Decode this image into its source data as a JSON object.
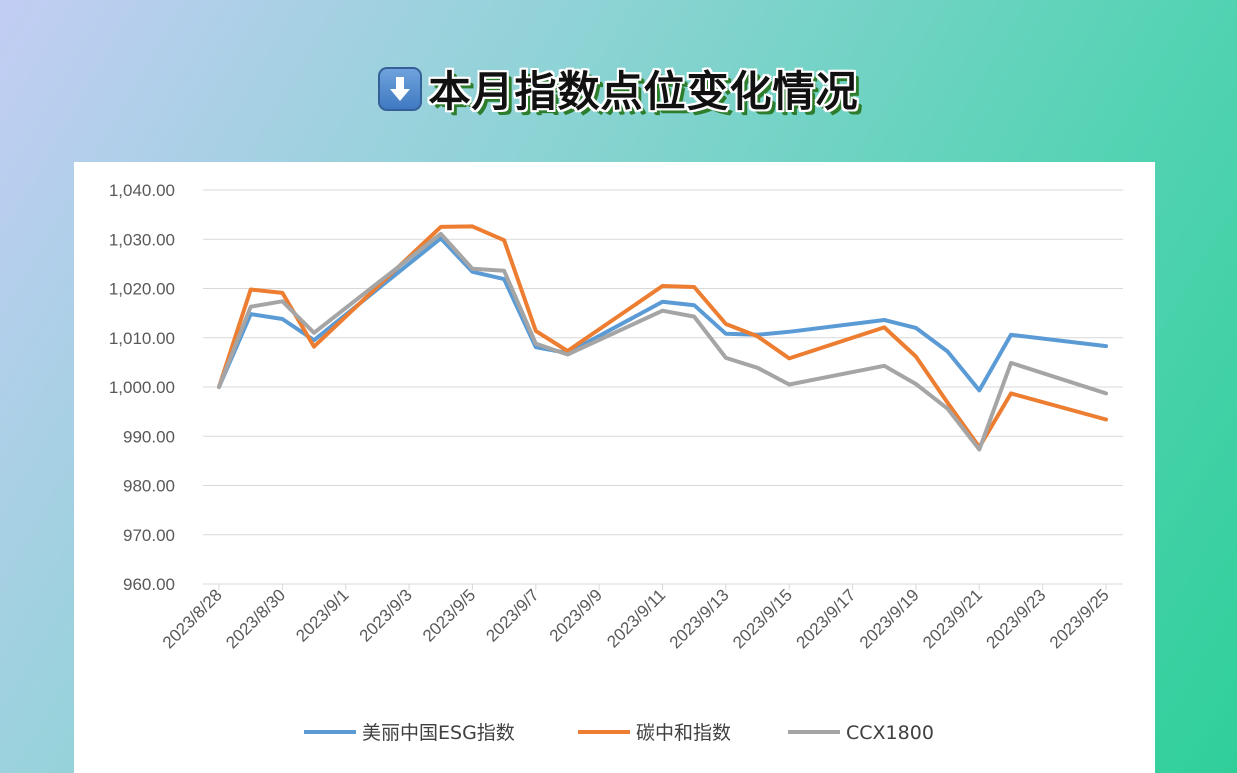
{
  "page": {
    "heading": "本月指数点位变化情况",
    "heading_icon": "down-arrow-icon"
  },
  "colors": {
    "series_blue": "#5b9bd5",
    "series_orange": "#ed7d31",
    "series_gray": "#a5a5a5",
    "grid": "#d9d9d9",
    "axis_text": "#595959"
  },
  "chart_data": {
    "type": "line",
    "xlabel": "",
    "ylabel": "",
    "ylim": [
      960,
      1040
    ],
    "grid": true,
    "legend_position": "bottom",
    "yticks": [
      "960.00",
      "970.00",
      "980.00",
      "990.00",
      "1,000.00",
      "1,010.00",
      "1,020.00",
      "1,030.00",
      "1,040.00"
    ],
    "xtick_labels": [
      "2023/8/28",
      "2023/8/30",
      "2023/9/1",
      "2023/9/3",
      "2023/9/5",
      "2023/9/7",
      "2023/9/9",
      "2023/9/11",
      "2023/9/13",
      "2023/9/15",
      "2023/9/17",
      "2023/9/19",
      "2023/9/21",
      "2023/9/23",
      "2023/9/25"
    ],
    "x": [
      "2023/8/28",
      "2023/8/29",
      "2023/8/30",
      "2023/8/31",
      "2023/9/4",
      "2023/9/5",
      "2023/9/6",
      "2023/9/7",
      "2023/9/8",
      "2023/9/11",
      "2023/9/12",
      "2023/9/13",
      "2023/9/14",
      "2023/9/15",
      "2023/9/18",
      "2023/9/19",
      "2023/9/20",
      "2023/9/21",
      "2023/9/22",
      "2023/9/25"
    ],
    "series": [
      {
        "name": "美丽中国ESG指数",
        "color": "#5b9bd5",
        "values": [
          1000.0,
          1014.8,
          1013.8,
          1009.5,
          1030.2,
          1023.4,
          1021.9,
          1008.1,
          1006.9,
          1017.3,
          1016.6,
          1010.8,
          1010.6,
          1011.2,
          1013.6,
          1012.0,
          1007.2,
          999.3,
          1010.6,
          1008.3
        ]
      },
      {
        "name": "碳中和指数",
        "color": "#ed7d31",
        "values": [
          1000.0,
          1019.8,
          1019.1,
          1008.2,
          1032.5,
          1032.6,
          1029.8,
          1011.4,
          1007.3,
          1020.5,
          1020.3,
          1012.8,
          1010.3,
          1005.8,
          1012.1,
          1006.2,
          996.8,
          987.8,
          998.7,
          993.4
        ]
      },
      {
        "name": "CCX1800",
        "color": "#a5a5a5",
        "values": [
          1000.0,
          1016.3,
          1017.4,
          1011.0,
          1031.1,
          1024.0,
          1023.6,
          1008.8,
          1006.6,
          1015.5,
          1014.3,
          1005.9,
          1003.9,
          1000.5,
          1004.3,
          1000.6,
          995.6,
          987.3,
          1004.9,
          998.7
        ]
      }
    ]
  }
}
